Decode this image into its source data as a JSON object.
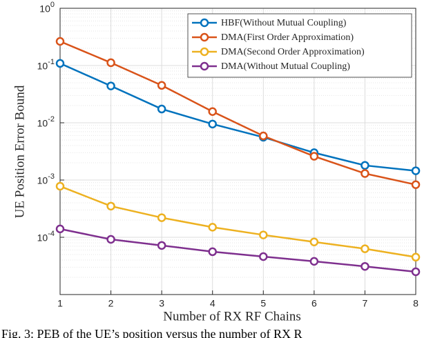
{
  "chart_data": {
    "type": "line",
    "xlabel": "Number of RX RF Chains",
    "ylabel": "UE Position Error Bound",
    "caption": "Fig. 3: PEB of the UE’s position versus the number of RX R",
    "x": [
      1,
      2,
      3,
      4,
      5,
      6,
      7,
      8
    ],
    "xlim": [
      1,
      8
    ],
    "xticks": [
      1,
      2,
      3,
      4,
      5,
      6,
      7,
      8
    ],
    "ylim": [
      1e-05,
      1
    ],
    "yscale": "log",
    "yticks": [
      {
        "value": 0.0001,
        "label": "10^-4"
      },
      {
        "value": 0.001,
        "label": "10^-3"
      },
      {
        "value": 0.01,
        "label": "10^-2"
      },
      {
        "value": 0.1,
        "label": "10^-1"
      },
      {
        "value": 1,
        "label": "10^0"
      }
    ],
    "grid": true,
    "minor_grid": true,
    "legend": "upper right",
    "series": [
      {
        "name": "HBF(Without Mutual Coupling)",
        "color": "#0072BD",
        "values": [
          0.109,
          0.044,
          0.0174,
          0.0095,
          0.0056,
          0.003,
          0.0018,
          0.00145
        ]
      },
      {
        "name": "DMA(First Order Approximation)",
        "color": "#D95319",
        "values": [
          0.264,
          0.112,
          0.045,
          0.0157,
          0.0059,
          0.0026,
          0.0013,
          0.00083
        ]
      },
      {
        "name": "DMA(Second Order Approximation)",
        "color": "#EDB120",
        "values": [
          0.00078,
          0.00035,
          0.00022,
          0.00015,
          0.00011,
          8.3e-05,
          6.3e-05,
          4.5e-05
        ]
      },
      {
        "name": "DMA(Without Mutual Coupling)",
        "color": "#7E2F8E",
        "values": [
          0.00014,
          9.2e-05,
          7.2e-05,
          5.6e-05,
          4.6e-05,
          3.8e-05,
          3.1e-05,
          2.5e-05
        ]
      }
    ]
  }
}
